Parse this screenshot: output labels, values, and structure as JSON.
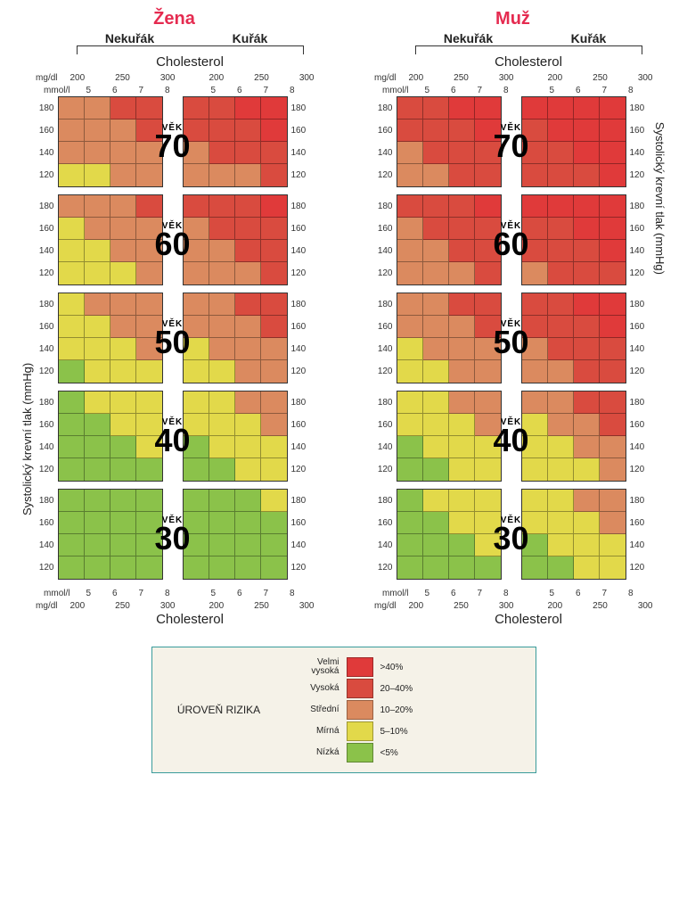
{
  "colors": {
    "very_high": "#e03a3a",
    "high": "#d94b3f",
    "medium": "#db8a5f",
    "mild": "#e2d94a",
    "low": "#8bc24a",
    "background": "#ffffff",
    "title_color": "#e52b50",
    "legend_border": "#3a9b9b",
    "legend_bg": "#f5f2e8",
    "text": "#222222"
  },
  "genders": [
    {
      "key": "female",
      "title": "Žena"
    },
    {
      "key": "male",
      "title": "Muž"
    }
  ],
  "smoker_labels": [
    "Nekuřák",
    "Kuřák"
  ],
  "cholesterol_label": "Cholesterol",
  "units": {
    "mgdl": "mg/dl",
    "mmoll": "mmol/l"
  },
  "mgdl_ticks": [
    "200",
    "250",
    "300"
  ],
  "mmoll_ticks": [
    "5",
    "6",
    "7",
    "8"
  ],
  "bp_ticks": [
    "180",
    "160",
    "140",
    "120"
  ],
  "y_axis_label": "Systolický krevní tlak (mmHg)",
  "age_label": "VĚK",
  "ages": [
    "70",
    "60",
    "50",
    "40",
    "30"
  ],
  "legend": {
    "title": "ÚROVEŇ RIZIKA",
    "items": [
      {
        "label": "Velmi vysoká",
        "color_key": "very_high",
        "pct": ">40%"
      },
      {
        "label": "Vysoká",
        "color_key": "high",
        "pct": "20–40%"
      },
      {
        "label": "Střední",
        "color_key": "medium",
        "pct": "10–20%"
      },
      {
        "label": "Mírná",
        "color_key": "mild",
        "pct": "5–10%"
      },
      {
        "label": "Nízká",
        "color_key": "low",
        "pct": "<5%"
      }
    ]
  },
  "grids": {
    "female": {
      "70": {
        "nonsmoker": [
          [
            "medium",
            "medium",
            "high",
            "high"
          ],
          [
            "medium",
            "medium",
            "medium",
            "high"
          ],
          [
            "medium",
            "medium",
            "medium",
            "medium"
          ],
          [
            "mild",
            "mild",
            "medium",
            "medium"
          ]
        ],
        "smoker": [
          [
            "high",
            "high",
            "very_high",
            "very_high"
          ],
          [
            "high",
            "high",
            "high",
            "very_high"
          ],
          [
            "medium",
            "high",
            "high",
            "high"
          ],
          [
            "medium",
            "medium",
            "medium",
            "high"
          ]
        ]
      },
      "60": {
        "nonsmoker": [
          [
            "medium",
            "medium",
            "medium",
            "high"
          ],
          [
            "mild",
            "medium",
            "medium",
            "medium"
          ],
          [
            "mild",
            "mild",
            "medium",
            "medium"
          ],
          [
            "mild",
            "mild",
            "mild",
            "medium"
          ]
        ],
        "smoker": [
          [
            "high",
            "high",
            "high",
            "very_high"
          ],
          [
            "medium",
            "high",
            "high",
            "high"
          ],
          [
            "medium",
            "medium",
            "high",
            "high"
          ],
          [
            "medium",
            "medium",
            "medium",
            "high"
          ]
        ]
      },
      "50": {
        "nonsmoker": [
          [
            "mild",
            "medium",
            "medium",
            "medium"
          ],
          [
            "mild",
            "mild",
            "medium",
            "medium"
          ],
          [
            "mild",
            "mild",
            "mild",
            "medium"
          ],
          [
            "low",
            "mild",
            "mild",
            "mild"
          ]
        ],
        "smoker": [
          [
            "medium",
            "medium",
            "high",
            "high"
          ],
          [
            "medium",
            "medium",
            "medium",
            "high"
          ],
          [
            "mild",
            "medium",
            "medium",
            "medium"
          ],
          [
            "mild",
            "mild",
            "medium",
            "medium"
          ]
        ]
      },
      "40": {
        "nonsmoker": [
          [
            "low",
            "mild",
            "mild",
            "mild"
          ],
          [
            "low",
            "low",
            "mild",
            "mild"
          ],
          [
            "low",
            "low",
            "low",
            "mild"
          ],
          [
            "low",
            "low",
            "low",
            "low"
          ]
        ],
        "smoker": [
          [
            "mild",
            "mild",
            "medium",
            "medium"
          ],
          [
            "mild",
            "mild",
            "mild",
            "medium"
          ],
          [
            "low",
            "mild",
            "mild",
            "mild"
          ],
          [
            "low",
            "low",
            "mild",
            "mild"
          ]
        ]
      },
      "30": {
        "nonsmoker": [
          [
            "low",
            "low",
            "low",
            "low"
          ],
          [
            "low",
            "low",
            "low",
            "low"
          ],
          [
            "low",
            "low",
            "low",
            "low"
          ],
          [
            "low",
            "low",
            "low",
            "low"
          ]
        ],
        "smoker": [
          [
            "low",
            "low",
            "low",
            "mild"
          ],
          [
            "low",
            "low",
            "low",
            "low"
          ],
          [
            "low",
            "low",
            "low",
            "low"
          ],
          [
            "low",
            "low",
            "low",
            "low"
          ]
        ]
      }
    },
    "male": {
      "70": {
        "nonsmoker": [
          [
            "high",
            "high",
            "very_high",
            "very_high"
          ],
          [
            "high",
            "high",
            "high",
            "very_high"
          ],
          [
            "medium",
            "high",
            "high",
            "high"
          ],
          [
            "medium",
            "medium",
            "high",
            "high"
          ]
        ],
        "smoker": [
          [
            "very_high",
            "very_high",
            "very_high",
            "very_high"
          ],
          [
            "high",
            "very_high",
            "very_high",
            "very_high"
          ],
          [
            "high",
            "high",
            "very_high",
            "very_high"
          ],
          [
            "high",
            "high",
            "high",
            "very_high"
          ]
        ]
      },
      "60": {
        "nonsmoker": [
          [
            "high",
            "high",
            "high",
            "very_high"
          ],
          [
            "medium",
            "high",
            "high",
            "high"
          ],
          [
            "medium",
            "medium",
            "high",
            "high"
          ],
          [
            "medium",
            "medium",
            "medium",
            "high"
          ]
        ],
        "smoker": [
          [
            "very_high",
            "very_high",
            "very_high",
            "very_high"
          ],
          [
            "high",
            "high",
            "very_high",
            "very_high"
          ],
          [
            "high",
            "high",
            "high",
            "very_high"
          ],
          [
            "medium",
            "high",
            "high",
            "high"
          ]
        ]
      },
      "50": {
        "nonsmoker": [
          [
            "medium",
            "medium",
            "high",
            "high"
          ],
          [
            "medium",
            "medium",
            "medium",
            "high"
          ],
          [
            "mild",
            "medium",
            "medium",
            "medium"
          ],
          [
            "mild",
            "mild",
            "medium",
            "medium"
          ]
        ],
        "smoker": [
          [
            "high",
            "high",
            "very_high",
            "very_high"
          ],
          [
            "high",
            "high",
            "high",
            "very_high"
          ],
          [
            "medium",
            "high",
            "high",
            "high"
          ],
          [
            "medium",
            "medium",
            "high",
            "high"
          ]
        ]
      },
      "40": {
        "nonsmoker": [
          [
            "mild",
            "mild",
            "medium",
            "medium"
          ],
          [
            "mild",
            "mild",
            "mild",
            "medium"
          ],
          [
            "low",
            "mild",
            "mild",
            "mild"
          ],
          [
            "low",
            "low",
            "mild",
            "mild"
          ]
        ],
        "smoker": [
          [
            "medium",
            "medium",
            "high",
            "high"
          ],
          [
            "mild",
            "medium",
            "medium",
            "high"
          ],
          [
            "mild",
            "mild",
            "medium",
            "medium"
          ],
          [
            "mild",
            "mild",
            "mild",
            "medium"
          ]
        ]
      },
      "30": {
        "nonsmoker": [
          [
            "low",
            "mild",
            "mild",
            "mild"
          ],
          [
            "low",
            "low",
            "mild",
            "mild"
          ],
          [
            "low",
            "low",
            "low",
            "mild"
          ],
          [
            "low",
            "low",
            "low",
            "low"
          ]
        ],
        "smoker": [
          [
            "mild",
            "mild",
            "medium",
            "medium"
          ],
          [
            "mild",
            "mild",
            "mild",
            "medium"
          ],
          [
            "low",
            "mild",
            "mild",
            "mild"
          ],
          [
            "low",
            "low",
            "mild",
            "mild"
          ]
        ]
      }
    }
  }
}
